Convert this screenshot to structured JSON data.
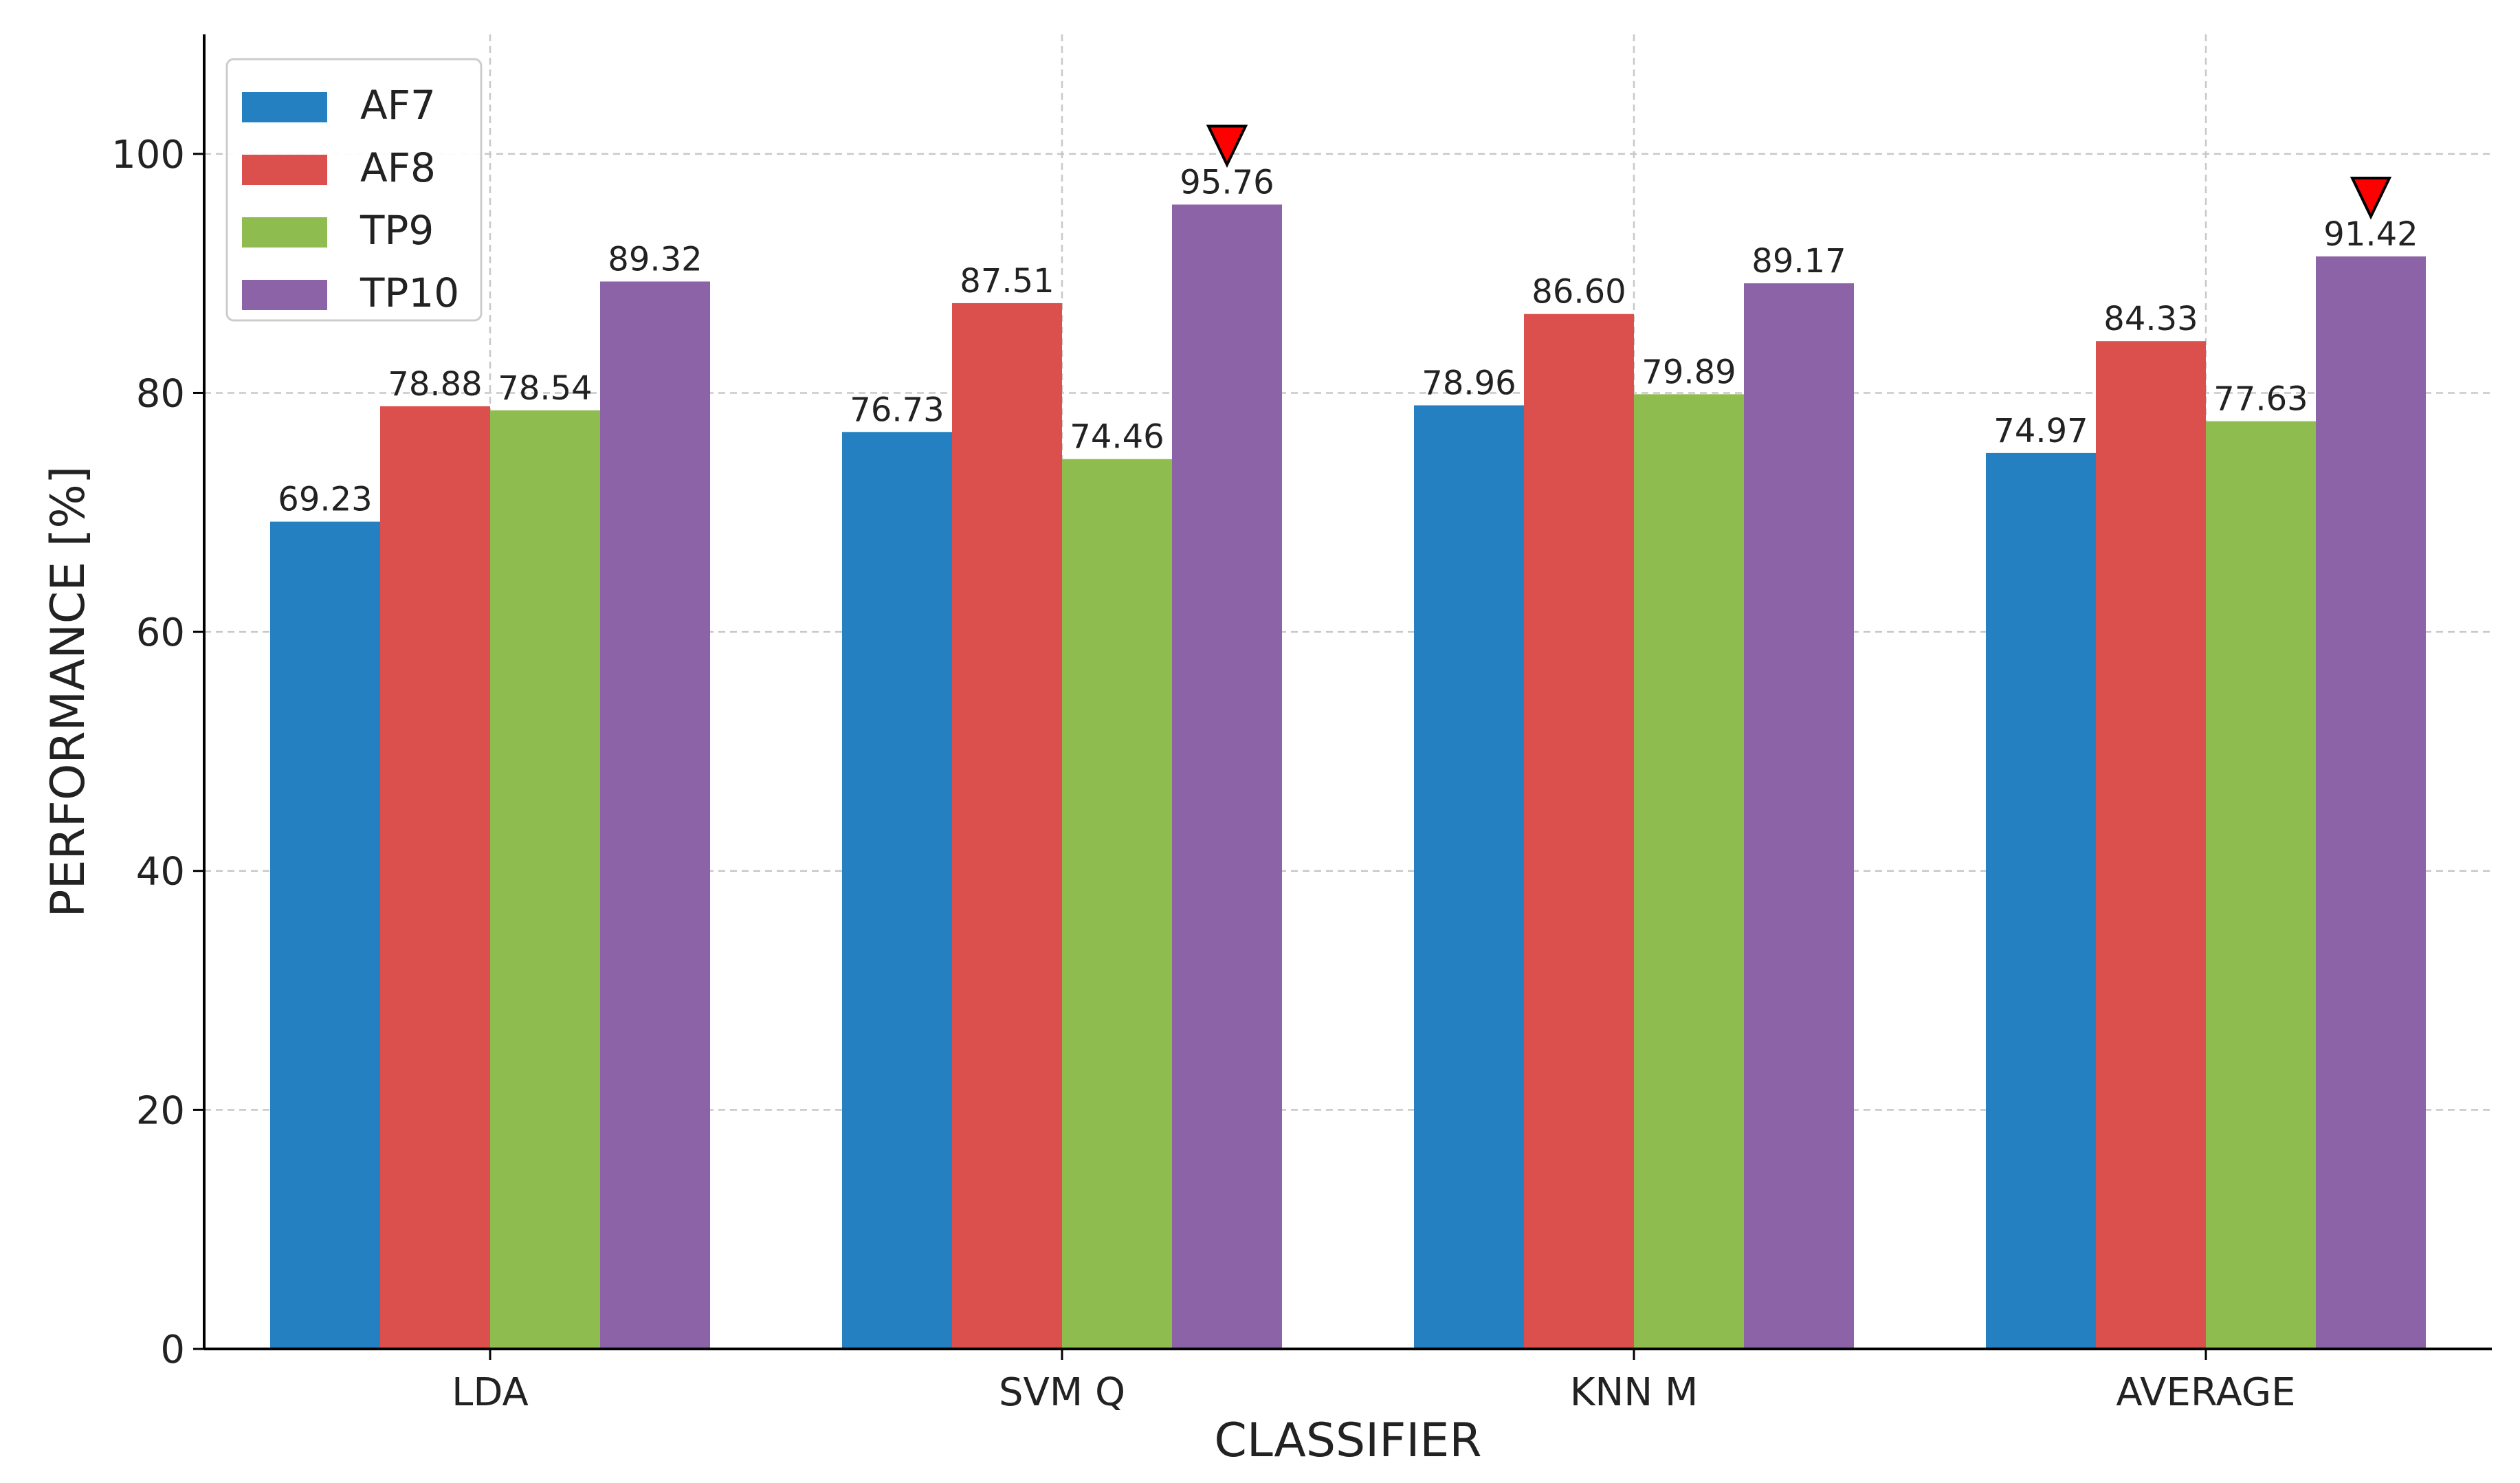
{
  "chart_data": {
    "type": "bar",
    "title": "",
    "xlabel": "CLASSIFIER",
    "ylabel": "PERFORMANCE [%]",
    "ylim": [
      0,
      110
    ],
    "yticks": [
      0,
      20,
      40,
      60,
      80,
      100
    ],
    "grid": true,
    "legend_position": "top-left",
    "categories": [
      "LDA",
      "SVM Q",
      "KNN M",
      "AVERAGE"
    ],
    "series": [
      {
        "name": "AF7",
        "color": "#2480c0",
        "values": [
          69.23,
          76.73,
          78.96,
          74.97
        ],
        "labels": [
          "69.23",
          "76.73",
          "78.96",
          "74.97"
        ]
      },
      {
        "name": "AF8",
        "color": "#db4f4d",
        "values": [
          78.88,
          87.51,
          86.6,
          84.33
        ],
        "labels": [
          "78.88",
          "87.51",
          "86.60",
          "84.33"
        ]
      },
      {
        "name": "TP9",
        "color": "#8fbc4f",
        "values": [
          78.54,
          74.46,
          79.89,
          77.63
        ],
        "labels": [
          "78.54",
          "74.46",
          "79.89",
          "77.63"
        ]
      },
      {
        "name": "TP10",
        "color": "#8b63a6",
        "values": [
          89.32,
          95.76,
          89.17,
          91.42
        ],
        "labels": [
          "89.32",
          "95.76",
          "89.17",
          "91.42"
        ]
      }
    ],
    "markers": [
      {
        "category": "SVM Q",
        "series": "TP10",
        "shape": "triangle-down",
        "color": "#ff0000"
      },
      {
        "category": "AVERAGE",
        "series": "TP10",
        "shape": "triangle-down",
        "color": "#ff0000"
      }
    ]
  }
}
